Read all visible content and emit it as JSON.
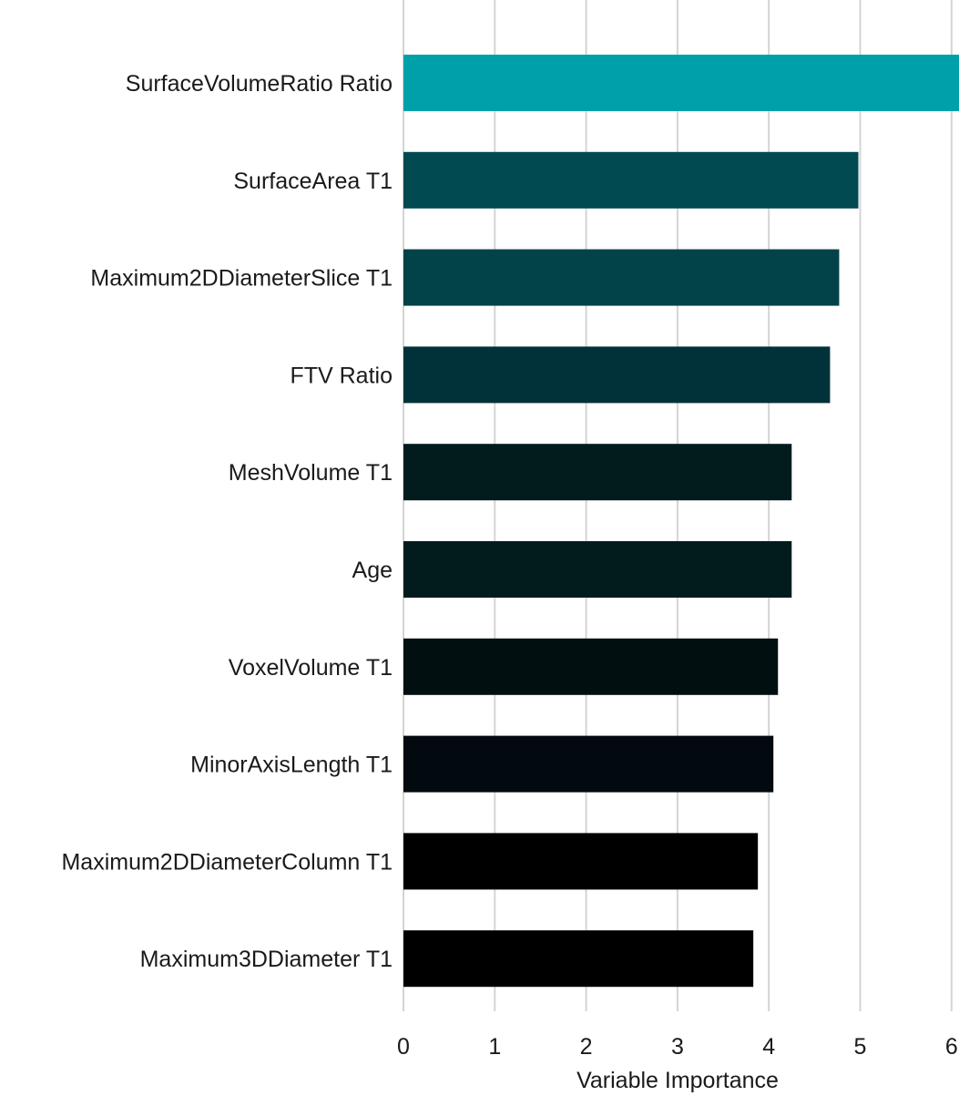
{
  "chart_data": {
    "type": "bar",
    "orientation": "horizontal",
    "categories": [
      "SurfaceVolumeRatio Ratio",
      "SurfaceArea T1",
      "Maximum2DDiameterSlice T1",
      "FTV Ratio",
      "MeshVolume T1",
      "Age",
      "VoxelVolume T1",
      "MinorAxisLength T1",
      "Maximum2DDiameterColumn T1",
      "Maximum3DDiameter T1"
    ],
    "values": [
      6.13,
      4.98,
      4.77,
      4.67,
      4.25,
      4.25,
      4.1,
      4.05,
      3.88,
      3.83
    ],
    "bar_colors": [
      "#00a0ab",
      "#014a51",
      "#024249",
      "#023239",
      "#021c1e",
      "#021c1e",
      "#020f10",
      "#030a0f",
      "#000000",
      "#000000"
    ],
    "xlabel": "Variable Importance",
    "ylabel": "",
    "xlim": [
      0,
      6
    ],
    "x_ticks": [
      0,
      1,
      2,
      3,
      4,
      5,
      6
    ],
    "grid": "vertical"
  }
}
